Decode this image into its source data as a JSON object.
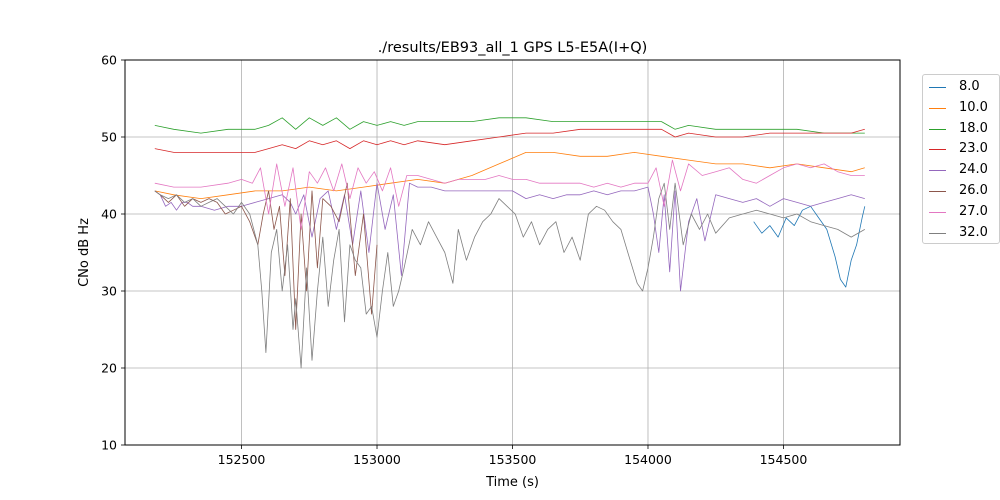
{
  "chart_data": {
    "type": "line",
    "title": "./results/EB93_all_1 GPS L5-E5A(I+Q)",
    "xlabel": "Time (s)",
    "ylabel": "CNo dB Hz",
    "xlim": [
      152070,
      154930
    ],
    "ylim": [
      10,
      60
    ],
    "xticks": [
      152500,
      153000,
      153500,
      154000,
      154500
    ],
    "yticks": [
      10,
      20,
      30,
      40,
      50,
      60
    ],
    "xtick_labels": [
      "152500",
      "153000",
      "153500",
      "154000",
      "154500"
    ],
    "ytick_labels": [
      "10",
      "20",
      "30",
      "40",
      "50",
      "60"
    ],
    "grid": true,
    "legend_position": "outside-right-top",
    "series": [
      {
        "name": "8.0",
        "color": "#1f77b4",
        "x": [
          154390,
          154420,
          154450,
          154480,
          154510,
          154540,
          154570,
          154600,
          154630,
          154660,
          154690,
          154710,
          154730,
          154750,
          154770,
          154790,
          154800
        ],
        "y": [
          39.0,
          37.5,
          38.5,
          37.0,
          39.5,
          38.5,
          40.5,
          41.0,
          39.5,
          38.0,
          34.5,
          31.5,
          30.5,
          34.0,
          36.0,
          39.5,
          41.0
        ]
      },
      {
        "name": "10.0",
        "color": "#ff7f0e",
        "x": [
          152180,
          152250,
          152350,
          152450,
          152550,
          152650,
          152750,
          152850,
          152950,
          153050,
          153150,
          153250,
          153350,
          153450,
          153550,
          153650,
          153750,
          153850,
          153950,
          154050,
          154150,
          154250,
          154350,
          154450,
          154550,
          154650,
          154750,
          154800
        ],
        "y": [
          43.0,
          42.5,
          42.0,
          42.5,
          43.0,
          43.0,
          43.5,
          43.0,
          43.5,
          44.0,
          44.5,
          44.0,
          45.0,
          46.5,
          48.0,
          48.0,
          47.5,
          47.5,
          48.0,
          47.5,
          47.0,
          46.5,
          46.5,
          46.0,
          46.5,
          46.0,
          45.5,
          46.0
        ]
      },
      {
        "name": "18.0",
        "color": "#2ca02c",
        "x": [
          152180,
          152250,
          152350,
          152450,
          152550,
          152600,
          152650,
          152700,
          152750,
          152800,
          152850,
          152900,
          152950,
          153000,
          153050,
          153100,
          153150,
          153250,
          153350,
          153450,
          153550,
          153650,
          153750,
          153850,
          153950,
          154050,
          154100,
          154150,
          154250,
          154350,
          154450,
          154550,
          154650,
          154750,
          154800
        ],
        "y": [
          51.5,
          51.0,
          50.5,
          51.0,
          51.0,
          51.5,
          52.5,
          51.0,
          52.5,
          51.5,
          52.5,
          51.0,
          52.0,
          51.5,
          52.0,
          51.5,
          52.0,
          52.0,
          52.0,
          52.5,
          52.5,
          52.0,
          52.0,
          52.0,
          52.0,
          52.0,
          51.0,
          51.5,
          51.0,
          51.0,
          51.0,
          51.0,
          50.5,
          50.5,
          50.5
        ]
      },
      {
        "name": "23.0",
        "color": "#d62728",
        "x": [
          152180,
          152250,
          152350,
          152450,
          152550,
          152600,
          152650,
          152700,
          152750,
          152800,
          152850,
          152900,
          152950,
          153000,
          153050,
          153100,
          153150,
          153250,
          153350,
          153450,
          153550,
          153650,
          153750,
          153850,
          153950,
          154050,
          154100,
          154150,
          154250,
          154350,
          154450,
          154550,
          154650,
          154750,
          154800
        ],
        "y": [
          48.5,
          48.0,
          48.0,
          48.0,
          48.0,
          48.5,
          49.0,
          48.5,
          49.5,
          49.0,
          49.5,
          48.5,
          49.5,
          49.0,
          49.5,
          49.0,
          49.5,
          49.0,
          49.5,
          50.0,
          50.5,
          50.5,
          51.0,
          51.0,
          51.0,
          51.0,
          50.0,
          50.5,
          50.0,
          50.0,
          50.5,
          50.5,
          50.5,
          50.5,
          51.0
        ]
      },
      {
        "name": "24.0",
        "color": "#9467bd",
        "x": [
          152180,
          152200,
          152220,
          152240,
          152260,
          152280,
          152300,
          152320,
          152350,
          152400,
          152450,
          152500,
          152550,
          152600,
          152650,
          152680,
          152700,
          152730,
          152760,
          152790,
          152820,
          152850,
          152880,
          152910,
          152940,
          152970,
          153000,
          153030,
          153060,
          153090,
          153120,
          153150,
          153200,
          153250,
          153300,
          153350,
          153400,
          153450,
          153500,
          153550,
          153600,
          153650,
          153700,
          153750,
          153800,
          153850,
          153900,
          153950,
          154000,
          154020,
          154040,
          154060,
          154080,
          154100,
          154120,
          154150,
          154180,
          154210,
          154250,
          154300,
          154350,
          154400,
          154450,
          154500,
          154550,
          154600,
          154650,
          154700,
          154750,
          154800
        ],
        "y": [
          43.0,
          42.5,
          41.0,
          41.5,
          40.5,
          41.5,
          41.5,
          41.0,
          41.0,
          40.5,
          41.0,
          41.0,
          41.5,
          42.0,
          42.5,
          41.5,
          40.0,
          42.5,
          37.0,
          42.0,
          43.0,
          38.0,
          42.5,
          36.0,
          43.0,
          35.0,
          44.0,
          38.0,
          42.5,
          32.0,
          44.0,
          43.5,
          43.5,
          43.0,
          43.0,
          43.0,
          43.0,
          43.0,
          43.0,
          42.0,
          42.5,
          42.0,
          42.5,
          42.5,
          43.0,
          42.5,
          43.0,
          43.0,
          43.5,
          40.0,
          35.0,
          42.5,
          32.5,
          43.0,
          30.0,
          39.0,
          42.0,
          36.5,
          42.5,
          42.0,
          41.5,
          42.0,
          41.0,
          42.0,
          41.5,
          41.0,
          41.5,
          42.0,
          42.5,
          42.0
        ]
      },
      {
        "name": "26.0",
        "color": "#8c564b",
        "x": [
          152180,
          152200,
          152230,
          152260,
          152290,
          152320,
          152350,
          152380,
          152410,
          152440,
          152470,
          152500,
          152530,
          152560,
          152580,
          152600,
          152620,
          152640,
          152660,
          152680,
          152700,
          152720,
          152740,
          152760,
          152780,
          152800,
          152830,
          152860,
          152890,
          152920,
          152950,
          152980,
          153000
        ],
        "y": [
          43.0,
          42.5,
          41.5,
          42.5,
          41.0,
          42.0,
          41.5,
          42.0,
          41.5,
          40.0,
          40.5,
          41.0,
          39.0,
          36.0,
          40.0,
          43.0,
          38.0,
          41.0,
          32.0,
          42.0,
          25.0,
          40.0,
          30.0,
          43.0,
          33.0,
          42.0,
          41.0,
          39.0,
          44.0,
          32.0,
          40.0,
          27.0,
          36.0
        ]
      },
      {
        "name": "27.0",
        "color": "#e377c2",
        "x": [
          152180,
          152250,
          152350,
          152450,
          152500,
          152540,
          152570,
          152600,
          152630,
          152660,
          152690,
          152720,
          152750,
          152780,
          152810,
          152840,
          152870,
          152900,
          152930,
          152960,
          152990,
          153020,
          153050,
          153080,
          153110,
          153150,
          153200,
          153250,
          153300,
          153350,
          153400,
          153450,
          153500,
          153550,
          153600,
          153650,
          153700,
          153750,
          153800,
          153850,
          153900,
          153950,
          154000,
          154030,
          154060,
          154090,
          154120,
          154150,
          154200,
          154250,
          154300,
          154350,
          154400,
          154450,
          154500,
          154550,
          154600,
          154650,
          154700,
          154750,
          154800
        ],
        "y": [
          44.0,
          43.5,
          43.5,
          44.0,
          44.5,
          44.0,
          46.0,
          40.0,
          46.5,
          41.0,
          46.0,
          38.0,
          45.5,
          44.0,
          46.0,
          43.0,
          46.5,
          42.0,
          46.0,
          44.0,
          45.5,
          43.0,
          46.0,
          41.0,
          45.0,
          45.0,
          44.5,
          44.0,
          44.5,
          44.5,
          44.5,
          45.0,
          44.5,
          44.5,
          44.0,
          44.0,
          44.0,
          44.0,
          43.5,
          44.0,
          43.5,
          44.0,
          44.0,
          46.0,
          41.0,
          47.0,
          43.0,
          46.5,
          45.0,
          45.5,
          46.0,
          44.5,
          44.0,
          45.0,
          46.0,
          46.5,
          46.0,
          46.5,
          45.5,
          45.0,
          45.0
        ]
      },
      {
        "name": "32.0",
        "color": "#7f7f7f",
        "x": [
          152180,
          152200,
          152230,
          152260,
          152290,
          152320,
          152350,
          152380,
          152410,
          152440,
          152470,
          152500,
          152530,
          152560,
          152575,
          152590,
          152610,
          152630,
          152650,
          152670,
          152690,
          152700,
          152720,
          152740,
          152760,
          152780,
          152800,
          152820,
          152840,
          152860,
          152880,
          152900,
          152920,
          152940,
          152960,
          152980,
          153000,
          153020,
          153040,
          153060,
          153080,
          153100,
          153130,
          153160,
          153190,
          153220,
          153250,
          153280,
          153300,
          153330,
          153360,
          153390,
          153420,
          153450,
          153480,
          153510,
          153540,
          153570,
          153600,
          153630,
          153660,
          153690,
          153720,
          153750,
          153780,
          153810,
          153840,
          153870,
          153900,
          153930,
          153960,
          153980,
          154000,
          154020,
          154040,
          154060,
          154080,
          154100,
          154130,
          154160,
          154190,
          154220,
          154250,
          154300,
          154350,
          154400,
          154450,
          154500,
          154550,
          154600,
          154650,
          154700,
          154750,
          154800
        ],
        "y": [
          43.0,
          42.5,
          42.0,
          42.5,
          41.5,
          42.0,
          41.0,
          41.5,
          42.0,
          41.0,
          40.0,
          41.5,
          40.0,
          36.0,
          30.0,
          22.0,
          35.0,
          38.0,
          30.0,
          36.0,
          25.0,
          29.0,
          20.0,
          33.0,
          21.0,
          30.0,
          37.0,
          28.0,
          34.0,
          38.0,
          26.0,
          36.0,
          34.0,
          33.0,
          27.0,
          28.0,
          24.0,
          30.0,
          35.0,
          28.0,
          30.0,
          33.0,
          38.0,
          36.0,
          39.0,
          37.0,
          35.0,
          31.0,
          38.0,
          34.0,
          37.0,
          39.0,
          40.0,
          42.0,
          41.0,
          40.0,
          37.0,
          39.0,
          36.0,
          38.0,
          39.0,
          35.0,
          37.0,
          34.0,
          40.0,
          41.0,
          40.5,
          39.0,
          38.0,
          34.5,
          31.0,
          30.0,
          33.0,
          37.0,
          42.0,
          44.0,
          38.0,
          44.0,
          36.0,
          40.0,
          38.0,
          40.0,
          37.5,
          39.5,
          40.0,
          40.5,
          40.0,
          39.5,
          40.0,
          39.0,
          38.5,
          38.0,
          37.0,
          38.0
        ]
      }
    ]
  }
}
